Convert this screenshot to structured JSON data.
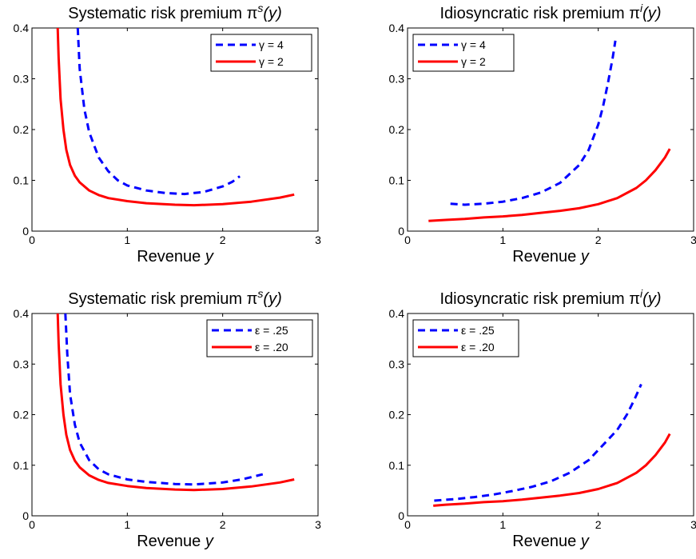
{
  "chart_data": [
    {
      "type": "line",
      "title": "Systematic risk premium",
      "title_symbol": "π",
      "title_sup": "s",
      "title_arg": "(y)",
      "xlabel": "Revenue",
      "xlabel_var": "y",
      "ylabel": "",
      "xlim": [
        0,
        3
      ],
      "ylim": [
        0,
        0.4
      ],
      "xticks": [
        "0",
        "1",
        "2",
        "3"
      ],
      "yticks": [
        "0",
        "0.1",
        "0.2",
        "0.3",
        "0.4"
      ],
      "grid": false,
      "legend_position": "top-right",
      "series": [
        {
          "name": "γ = 4",
          "color": "#0000ff",
          "style": "dashed",
          "x": [
            0.48,
            0.5,
            0.55,
            0.6,
            0.7,
            0.8,
            0.9,
            1.0,
            1.2,
            1.4,
            1.6,
            1.8,
            2.0,
            2.1,
            2.18
          ],
          "y": [
            0.4,
            0.32,
            0.24,
            0.195,
            0.145,
            0.118,
            0.1,
            0.09,
            0.08,
            0.075,
            0.073,
            0.077,
            0.088,
            0.097,
            0.108
          ]
        },
        {
          "name": "γ = 2",
          "color": "#ff0000",
          "style": "solid",
          "x": [
            0.27,
            0.28,
            0.3,
            0.33,
            0.36,
            0.4,
            0.45,
            0.5,
            0.6,
            0.7,
            0.8,
            1.0,
            1.2,
            1.5,
            1.7,
            2.0,
            2.3,
            2.6,
            2.75
          ],
          "y": [
            0.4,
            0.34,
            0.26,
            0.2,
            0.16,
            0.13,
            0.109,
            0.096,
            0.08,
            0.071,
            0.065,
            0.059,
            0.055,
            0.052,
            0.051,
            0.053,
            0.058,
            0.066,
            0.072
          ]
        }
      ]
    },
    {
      "type": "line",
      "title": "Idiosyncratic risk premium",
      "title_symbol": "π",
      "title_sup": "i",
      "title_arg": "(y)",
      "xlabel": "Revenue",
      "xlabel_var": "y",
      "ylabel": "",
      "xlim": [
        0,
        3
      ],
      "ylim": [
        0,
        0.4
      ],
      "xticks": [
        "0",
        "1",
        "2",
        "3"
      ],
      "yticks": [
        "0",
        "0.1",
        "0.2",
        "0.3",
        "0.4"
      ],
      "grid": false,
      "legend_position": "top-left",
      "series": [
        {
          "name": "γ = 4",
          "color": "#0000ff",
          "style": "dashed",
          "x": [
            0.45,
            0.6,
            0.8,
            1.0,
            1.2,
            1.4,
            1.6,
            1.8,
            1.9,
            2.0,
            2.05,
            2.1,
            2.15,
            2.18
          ],
          "y": [
            0.054,
            0.052,
            0.054,
            0.058,
            0.065,
            0.076,
            0.095,
            0.13,
            0.16,
            0.21,
            0.245,
            0.29,
            0.34,
            0.375
          ]
        },
        {
          "name": "γ = 2",
          "color": "#ff0000",
          "style": "solid",
          "x": [
            0.22,
            0.4,
            0.6,
            0.8,
            1.0,
            1.2,
            1.4,
            1.6,
            1.8,
            2.0,
            2.2,
            2.4,
            2.5,
            2.6,
            2.7,
            2.75
          ],
          "y": [
            0.02,
            0.022,
            0.024,
            0.027,
            0.029,
            0.032,
            0.036,
            0.04,
            0.045,
            0.053,
            0.065,
            0.085,
            0.1,
            0.12,
            0.145,
            0.162
          ]
        }
      ]
    },
    {
      "type": "line",
      "title": "Systematic risk premium",
      "title_symbol": "π",
      "title_sup": "s",
      "title_arg": "(y)",
      "xlabel": "Revenue",
      "xlabel_var": "y",
      "ylabel": "",
      "xlim": [
        0,
        3
      ],
      "ylim": [
        0,
        0.4
      ],
      "xticks": [
        "0",
        "1",
        "2",
        "3"
      ],
      "yticks": [
        "0",
        "0.1",
        "0.2",
        "0.3",
        "0.4"
      ],
      "grid": false,
      "legend_position": "top-right",
      "series": [
        {
          "name": "ε = .25",
          "color": "#0000ff",
          "style": "dashed",
          "x": [
            0.35,
            0.37,
            0.4,
            0.45,
            0.5,
            0.6,
            0.7,
            0.8,
            1.0,
            1.2,
            1.5,
            1.7,
            2.0,
            2.2,
            2.42
          ],
          "y": [
            0.4,
            0.32,
            0.24,
            0.18,
            0.145,
            0.11,
            0.092,
            0.082,
            0.072,
            0.067,
            0.063,
            0.062,
            0.066,
            0.072,
            0.082
          ]
        },
        {
          "name": "ε = .20",
          "color": "#ff0000",
          "style": "solid",
          "x": [
            0.27,
            0.28,
            0.3,
            0.33,
            0.36,
            0.4,
            0.45,
            0.5,
            0.6,
            0.7,
            0.8,
            1.0,
            1.2,
            1.5,
            1.7,
            2.0,
            2.3,
            2.6,
            2.75
          ],
          "y": [
            0.4,
            0.34,
            0.26,
            0.2,
            0.16,
            0.13,
            0.109,
            0.096,
            0.08,
            0.071,
            0.065,
            0.059,
            0.055,
            0.052,
            0.051,
            0.053,
            0.058,
            0.066,
            0.072
          ]
        }
      ]
    },
    {
      "type": "line",
      "title": "Idiosyncratic risk premium",
      "title_symbol": "π",
      "title_sup": "i",
      "title_arg": "(y)",
      "xlabel": "Revenue",
      "xlabel_var": "y",
      "ylabel": "",
      "xlim": [
        0,
        3
      ],
      "ylim": [
        0,
        0.4
      ],
      "xticks": [
        "0",
        "1",
        "2",
        "3"
      ],
      "yticks": [
        "0",
        "0.1",
        "0.2",
        "0.3",
        "0.4"
      ],
      "grid": false,
      "legend_position": "top-left",
      "series": [
        {
          "name": "ε = .25",
          "color": "#0000ff",
          "style": "dashed",
          "x": [
            0.28,
            0.5,
            0.7,
            0.9,
            1.1,
            1.3,
            1.5,
            1.7,
            1.9,
            2.05,
            2.2,
            2.3,
            2.38,
            2.45
          ],
          "y": [
            0.03,
            0.033,
            0.037,
            0.042,
            0.049,
            0.057,
            0.068,
            0.085,
            0.11,
            0.14,
            0.17,
            0.2,
            0.23,
            0.26
          ]
        },
        {
          "name": "ε = .20",
          "color": "#ff0000",
          "style": "solid",
          "x": [
            0.27,
            0.4,
            0.6,
            0.8,
            1.0,
            1.2,
            1.4,
            1.6,
            1.8,
            2.0,
            2.2,
            2.4,
            2.5,
            2.6,
            2.7,
            2.75
          ],
          "y": [
            0.02,
            0.022,
            0.024,
            0.027,
            0.029,
            0.032,
            0.036,
            0.04,
            0.045,
            0.053,
            0.065,
            0.085,
            0.1,
            0.12,
            0.145,
            0.162
          ]
        }
      ]
    }
  ]
}
